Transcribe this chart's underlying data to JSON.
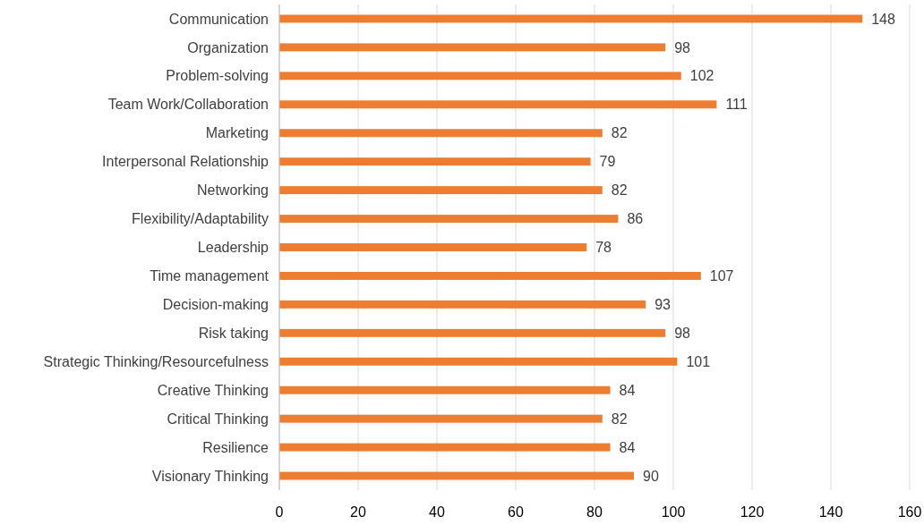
{
  "chart_data": {
    "type": "bar",
    "orientation": "horizontal",
    "categories": [
      "Communication",
      "Organization",
      "Problem-solving",
      "Team Work/Collaboration",
      "Marketing",
      "Interpersonal Relationship",
      "Networking",
      "Flexibility/Adaptability",
      "Leadership",
      "Time management",
      "Decision-making",
      "Risk taking",
      "Strategic Thinking/Resourcefulness",
      "Creative Thinking",
      "Critical Thinking",
      "Resilience",
      "Visionary Thinking"
    ],
    "values": [
      148,
      98,
      102,
      111,
      82,
      79,
      82,
      86,
      78,
      107,
      93,
      98,
      101,
      84,
      82,
      84,
      90
    ],
    "color": "#ed7d31",
    "xlim": [
      0,
      160
    ],
    "xticks": [
      0,
      20,
      40,
      60,
      80,
      100,
      120,
      140,
      160
    ],
    "grid": "x",
    "data_labels": true
  }
}
